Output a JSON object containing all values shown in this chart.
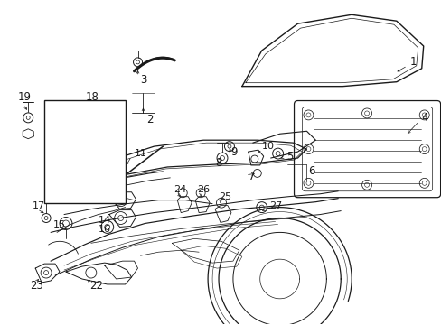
{
  "background_color": "#ffffff",
  "line_color": "#1a1a1a",
  "text_color": "#1a1a1a",
  "figsize": [
    4.89,
    3.6
  ],
  "dpi": 100,
  "fontsize": 8.5
}
